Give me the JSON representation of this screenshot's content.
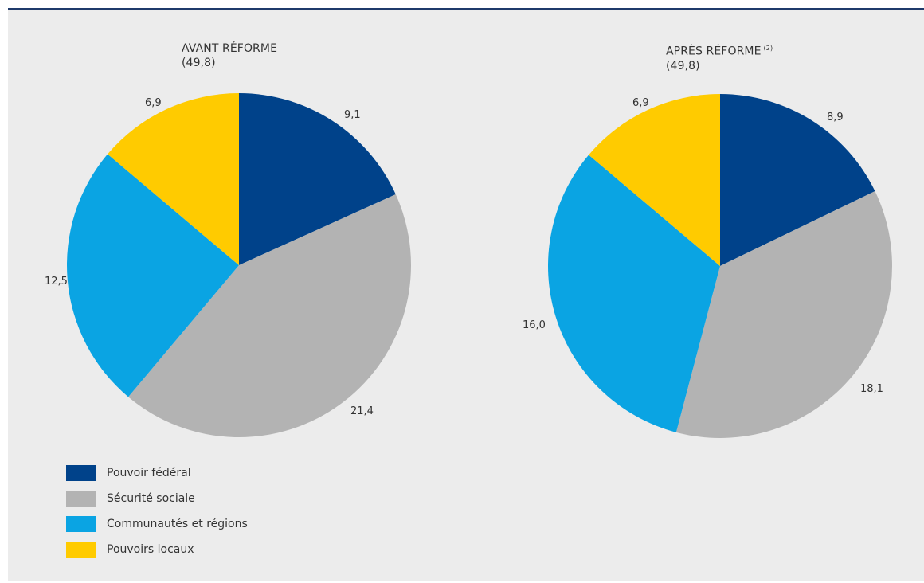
{
  "colors": {
    "pouvoir_federal": "#00428a",
    "securite_sociale": "#b3b3b3",
    "communautes_regions": "#0aa4e3",
    "pouvoirs_locaux": "#ffcb00"
  },
  "chart_data": [
    {
      "type": "pie",
      "title": "AVANT RÉFORME",
      "subtitle": "(49,8)",
      "title_note": "",
      "start_angle_deg": 0,
      "direction": "clockwise",
      "slices": [
        {
          "name": "Pouvoir fédéral",
          "value": 9.1,
          "label": "9,1",
          "color": "#00428a"
        },
        {
          "name": "Sécurité sociale",
          "value": 21.4,
          "label": "21,4",
          "color": "#b3b3b3"
        },
        {
          "name": "Communautés et régions",
          "value": 12.5,
          "label": "12,5",
          "color": "#0aa4e3"
        },
        {
          "name": "Pouvoirs locaux",
          "value": 6.9,
          "label": "6,9",
          "color": "#ffcb00"
        }
      ]
    },
    {
      "type": "pie",
      "title": "APRÈS RÉFORME",
      "subtitle": "(49,8)",
      "title_note": "(2)",
      "start_angle_deg": 0,
      "direction": "clockwise",
      "slices": [
        {
          "name": "Pouvoir fédéral",
          "value": 8.9,
          "label": "8,9",
          "color": "#00428a"
        },
        {
          "name": "Sécurité sociale",
          "value": 18.1,
          "label": "18,1",
          "color": "#b3b3b3"
        },
        {
          "name": "Communautés et régions",
          "value": 16.0,
          "label": "16,0",
          "color": "#0aa4e3"
        },
        {
          "name": "Pouvoirs locaux",
          "value": 6.9,
          "label": "6,9",
          "color": "#ffcb00"
        }
      ]
    }
  ],
  "legend": {
    "items": [
      {
        "label": "Pouvoir fédéral",
        "color": "#00428a"
      },
      {
        "label": "Sécurité sociale",
        "color": "#b3b3b3"
      },
      {
        "label": "Communautés et régions",
        "color": "#0aa4e3"
      },
      {
        "label": "Pouvoirs locaux",
        "color": "#ffcb00"
      }
    ]
  }
}
